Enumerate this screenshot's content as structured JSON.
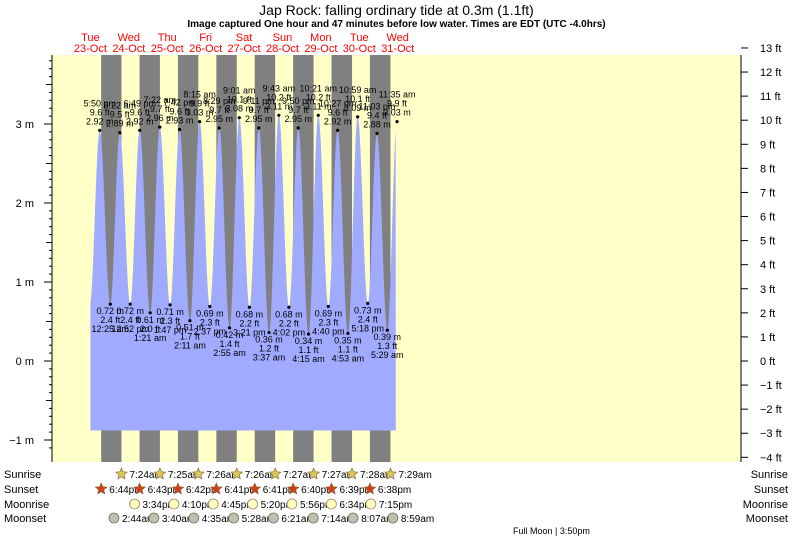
{
  "chart_data": {
    "type": "area",
    "title": "Jap Rock: falling  ordinary tide at 0.3m (1.1ft)",
    "subtitle": "Image captured One hour and 47 minutes before low water. Times are EDT (UTC -4.0hrs)",
    "ylim_m": [
      -1.1,
      3.85
    ],
    "ylim_ft": [
      -4,
      13
    ],
    "yticks_m": [
      -1,
      0,
      1,
      2,
      3
    ],
    "yticks_m_labels": [
      "−1 m",
      "0 m",
      "1 m",
      "2 m",
      "3 m"
    ],
    "yticks_ft": [
      -4,
      -3,
      -2,
      -1,
      0,
      1,
      2,
      3,
      4,
      5,
      6,
      7,
      8,
      9,
      10,
      11,
      12,
      13
    ],
    "yticks_ft_labels": [
      "−4 ft",
      "−3 ft",
      "−2 ft",
      "−1 ft",
      "0 ft",
      "1 ft",
      "2 ft",
      "3 ft",
      "4 ft",
      "5 ft",
      "6 ft",
      "7 ft",
      "8 ft",
      "9 ft",
      "10 ft",
      "11 ft",
      "12 ft",
      "13 ft"
    ],
    "days": [
      {
        "dow": "Tue",
        "date": "23-Oct"
      },
      {
        "dow": "Wed",
        "date": "24-Oct"
      },
      {
        "dow": "Thu",
        "date": "25-Oct"
      },
      {
        "dow": "Fri",
        "date": "26-Oct"
      },
      {
        "dow": "Sat",
        "date": "27-Oct"
      },
      {
        "dow": "Sun",
        "date": "28-Oct"
      },
      {
        "dow": "Mon",
        "date": "29-Oct"
      },
      {
        "dow": "Tue",
        "date": "30-Oct"
      },
      {
        "dow": "Wed",
        "date": "31-Oct"
      }
    ],
    "high_tides": [
      {
        "time": "5:50 pm",
        "ft": "9.6 ft",
        "m": 2.92,
        "m_label": "2.92 m"
      },
      {
        "time": "6:22 am",
        "ft": "9.5 ft",
        "m": 2.89,
        "m_label": "2.89 m"
      },
      {
        "time": "6:49 pm",
        "ft": "9.6 ft",
        "m": 2.92,
        "m_label": "2.92 m"
      },
      {
        "time": "7:22 am",
        "ft": "9.7 ft",
        "m": 2.96,
        "m_label": "2.96 m"
      },
      {
        "time": "7:42 pm",
        "ft": "9.6 ft",
        "m": 2.93,
        "m_label": "2.93 m"
      },
      {
        "time": "8:15 am",
        "ft": "9.9 ft",
        "m": 3.03,
        "m_label": "3.03 m"
      },
      {
        "time": "8:29 pm",
        "ft": "9.7 ft",
        "m": 2.95,
        "m_label": "2.95 m"
      },
      {
        "time": "9:01 am",
        "ft": "10.1 ft",
        "m": 3.08,
        "m_label": "3.08 m"
      },
      {
        "time": "9:11 pm",
        "ft": "9.7 ft",
        "m": 2.95,
        "m_label": "2.95 m"
      },
      {
        "time": "9:43 am",
        "ft": "10.2 ft",
        "m": 3.11,
        "m_label": "3.11 m"
      },
      {
        "time": "9:50 pm",
        "ft": "9.7 ft",
        "m": 2.95,
        "m_label": "2.95 m"
      },
      {
        "time": "10:21 am",
        "ft": "10.2 ft",
        "m": 3.11,
        "m_label": "3.11 m"
      },
      {
        "time": "10:27 pm",
        "ft": "9.6 ft",
        "m": 2.92,
        "m_label": "2.92 m"
      },
      {
        "time": "10:59 am",
        "ft": "10.1 ft",
        "m": 3.09,
        "m_label": "3.09 m"
      },
      {
        "time": "11:03 pm",
        "ft": "9.4 ft",
        "m": 2.88,
        "m_label": "2.88 m"
      },
      {
        "time": "11:35 am",
        "ft": "9.9 ft",
        "m": 3.03,
        "m_label": "3.03 m"
      }
    ],
    "low_tides": [
      {
        "time": "12:25 am",
        "ft": "2.4 ft",
        "m": 0.72,
        "m_label": "0.72 m"
      },
      {
        "time": "12:52 pm",
        "ft": "2.4 ft",
        "m": 0.72,
        "m_label": "0.72 m"
      },
      {
        "time": "1:21 am",
        "ft": "2.0 ft",
        "m": 0.61,
        "m_label": "0.61 m"
      },
      {
        "time": "1:47 pm",
        "ft": "2.3 ft",
        "m": 0.71,
        "m_label": "0.71 m"
      },
      {
        "time": "2:11 am",
        "ft": "1.7 ft",
        "m": 0.51,
        "m_label": "0.51 m"
      },
      {
        "time": "2:37 pm",
        "ft": "2.3 ft",
        "m": 0.69,
        "m_label": "0.69 m"
      },
      {
        "time": "2:55 am",
        "ft": "1.4 ft",
        "m": 0.42,
        "m_label": "0.42 m"
      },
      {
        "time": "3:21 pm",
        "ft": "2.2 ft",
        "m": 0.68,
        "m_label": "0.68 m"
      },
      {
        "time": "3:37 am",
        "ft": "1.2 ft",
        "m": 0.36,
        "m_label": "0.36 m"
      },
      {
        "time": "4:02 pm",
        "ft": "2.2 ft",
        "m": 0.68,
        "m_label": "0.68 m"
      },
      {
        "time": "4:15 am",
        "ft": "1.1 ft",
        "m": 0.34,
        "m_label": "0.34 m"
      },
      {
        "time": "4:40 pm",
        "ft": "2.3 ft",
        "m": 0.69,
        "m_label": "0.69 m"
      },
      {
        "time": "4:53 am",
        "ft": "1.1 ft",
        "m": 0.35,
        "m_label": "0.35 m"
      },
      {
        "time": "5:18 pm",
        "ft": "2.4 ft",
        "m": 0.73,
        "m_label": "0.73 m"
      },
      {
        "time": "5:29 am",
        "ft": "1.3 ft",
        "m": 0.39,
        "m_label": "0.39 m"
      }
    ],
    "current_level": {
      "m": 0.3,
      "ft": 1.1
    },
    "sunrise": [
      "7:24am",
      "7:25am",
      "7:26am",
      "7:26am",
      "7:27am",
      "7:27am",
      "7:28am",
      "7:29am"
    ],
    "sunset": [
      "6:44pm",
      "6:43pm",
      "6:42pm",
      "6:41pm",
      "6:41pm",
      "6:40pm",
      "6:39pm",
      "6:38pm"
    ],
    "moonrise": [
      "3:34pm",
      "4:10pm",
      "4:45pm",
      "5:20pm",
      "5:56pm",
      "6:34pm",
      "7:15pm"
    ],
    "moonset": [
      "2:44am",
      "3:40am",
      "4:35am",
      "5:28am",
      "6:21am",
      "7:14am",
      "8:07am",
      "8:59am"
    ],
    "row_labels": {
      "sunrise": "Sunrise",
      "sunset": "Sunset",
      "moonrise": "Moonrise",
      "moonset": "Moonset"
    },
    "full_moon": "Full Moon | 3:50pm",
    "colors": {
      "water": "#a0aaff",
      "day": "#ffffc8",
      "night": "#808080",
      "day_label": "#ff0000",
      "sun_star": "#d8c860",
      "sunset_star": "#d04020",
      "moon": "#ffffc0",
      "moonset": "#c0c0b0"
    }
  }
}
